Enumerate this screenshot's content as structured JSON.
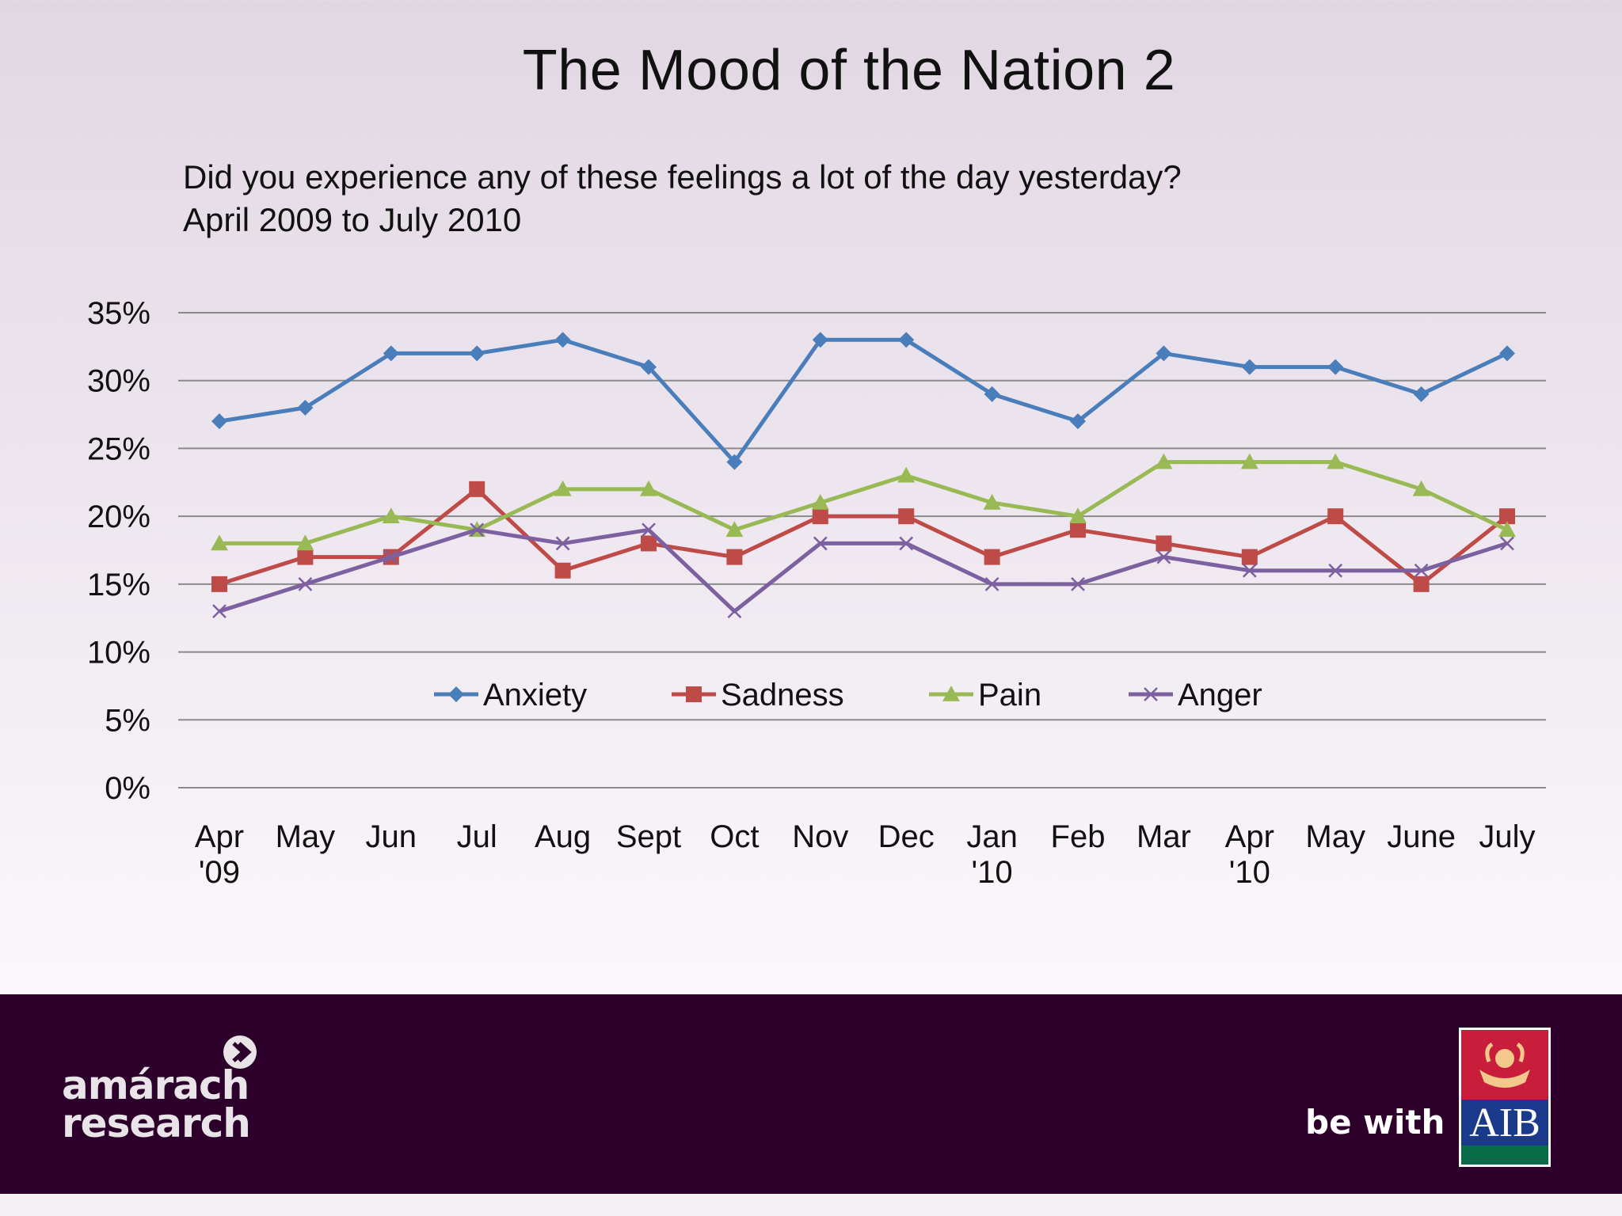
{
  "header": {
    "title": "The Mood of the Nation 2",
    "subtitle_line1": "Did you experience any of these feelings a lot of the day yesterday?",
    "subtitle_line2": "April 2009 to July 2010"
  },
  "chart_data": {
    "type": "line",
    "categories": [
      [
        "Apr",
        "'09"
      ],
      [
        "May"
      ],
      [
        "Jun"
      ],
      [
        "Jul"
      ],
      [
        "Aug"
      ],
      [
        "Sept"
      ],
      [
        "Oct"
      ],
      [
        "Nov"
      ],
      [
        "Dec"
      ],
      [
        "Jan",
        "'10"
      ],
      [
        "Feb"
      ],
      [
        "Mar"
      ],
      [
        "Apr",
        "'10"
      ],
      [
        "May"
      ],
      [
        "June"
      ],
      [
        "July"
      ]
    ],
    "y_ticks": [
      "0%",
      "5%",
      "10%",
      "15%",
      "20%",
      "25%",
      "30%",
      "35%"
    ],
    "ylim": [
      0,
      35
    ],
    "y_unit": "%",
    "grid": true,
    "legend_position": "inside-bottom-center",
    "series": [
      {
        "name": "Anxiety",
        "color": "#4a7ebb",
        "marker": "diamond",
        "values": [
          27,
          28,
          32,
          32,
          33,
          31,
          24,
          33,
          33,
          29,
          27,
          32,
          31,
          31,
          29,
          32
        ]
      },
      {
        "name": "Sadness",
        "color": "#be4b48",
        "marker": "square",
        "values": [
          15,
          17,
          17,
          22,
          16,
          18,
          17,
          20,
          20,
          17,
          19,
          18,
          17,
          20,
          15,
          20
        ]
      },
      {
        "name": "Pain",
        "color": "#98b954",
        "marker": "triangle",
        "values": [
          18,
          18,
          20,
          19,
          22,
          22,
          19,
          21,
          23,
          21,
          20,
          24,
          24,
          24,
          22,
          19
        ]
      },
      {
        "name": "Anger",
        "color": "#7d60a0",
        "marker": "x",
        "values": [
          13,
          15,
          17,
          19,
          18,
          19,
          13,
          18,
          18,
          15,
          15,
          17,
          16,
          16,
          16,
          18
        ]
      }
    ]
  },
  "footer": {
    "brand_line1": "amárach",
    "brand_line2": "research",
    "tagline": "be with",
    "bank_logo_text": "AIB"
  }
}
